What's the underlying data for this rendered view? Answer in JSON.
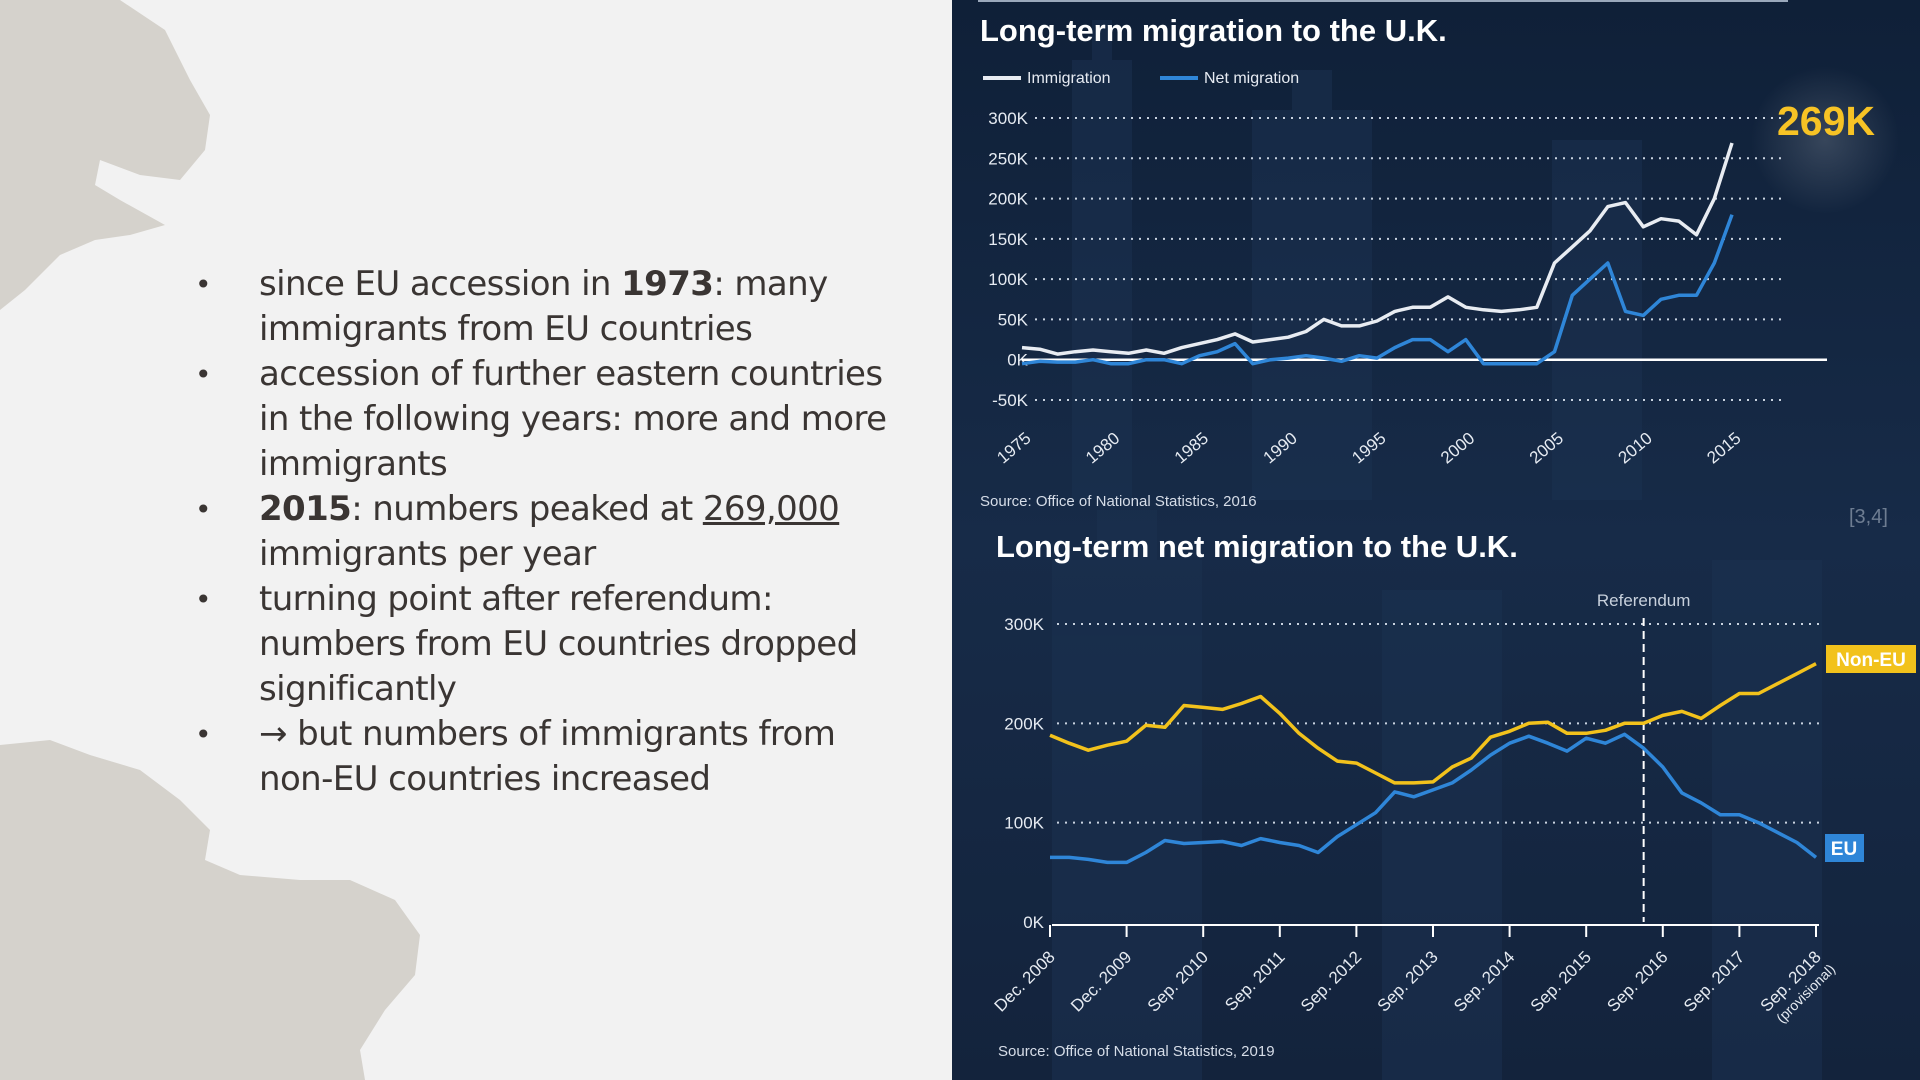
{
  "slide": {
    "bullets": [
      {
        "pre": "since EU accession in ",
        "bold": "1973",
        "post": ": many immigrants from EU countries"
      },
      {
        "pre": "accession of further eastern countries in the following years: more and more immigrants"
      },
      {
        "bold": "2015",
        "mid": ": numbers peaked at ",
        "underline": "269,000",
        "post": " immigrants per year"
      },
      {
        "pre": "turning point after referendum: numbers from EU countries dropped significantly"
      },
      {
        "pre": "→ but numbers of immigrants from non-EU countries increased"
      }
    ],
    "citation": "[3,4]"
  },
  "colors": {
    "panel_bg": "#13243e",
    "immigration": "#e8ecf2",
    "net_migration": "#2f86d8",
    "non_eu": "#f2c21c",
    "eu": "#2f86d8",
    "highlight": "#f7c325"
  },
  "chart_data": [
    {
      "type": "line",
      "title": "Long-term migration to the U.K.",
      "legend": [
        "Immigration",
        "Net migration"
      ],
      "legend_position": "top-left",
      "ylim": [
        -50,
        300
      ],
      "yticks": [
        -50,
        0,
        50,
        100,
        150,
        200,
        250,
        300
      ],
      "ytick_labels": [
        "-50K",
        "0K",
        "50K",
        "100K",
        "150K",
        "200K",
        "250K",
        "300K"
      ],
      "xlim": [
        1975,
        2015
      ],
      "xticks": [
        "1975",
        "1980",
        "1985",
        "1990",
        "1995",
        "2000",
        "2005",
        "2010",
        "2015"
      ],
      "grid": true,
      "annotation": "269K",
      "source": "Source: Office of National Statistics, 2016",
      "x": [
        1975,
        1976,
        1977,
        1978,
        1979,
        1980,
        1981,
        1982,
        1983,
        1984,
        1985,
        1986,
        1987,
        1988,
        1989,
        1990,
        1991,
        1992,
        1993,
        1994,
        1995,
        1996,
        1997,
        1998,
        1999,
        2000,
        2001,
        2002,
        2003,
        2004,
        2005,
        2006,
        2007,
        2008,
        2009,
        2010,
        2011,
        2012,
        2013,
        2014,
        2015
      ],
      "series": [
        {
          "name": "Immigration",
          "values": [
            15,
            13,
            7,
            10,
            12,
            10,
            8,
            12,
            8,
            15,
            20,
            25,
            32,
            22,
            25,
            28,
            35,
            50,
            42,
            42,
            48,
            60,
            65,
            65,
            78,
            65,
            62,
            60,
            62,
            65,
            120,
            140,
            160,
            190,
            195,
            165,
            175,
            172,
            155,
            200,
            269
          ]
        },
        {
          "name": "Net migration",
          "values": [
            -5,
            -2,
            -3,
            -3,
            0,
            -5,
            -5,
            0,
            0,
            -5,
            5,
            10,
            20,
            -5,
            0,
            2,
            5,
            2,
            -2,
            5,
            2,
            15,
            25,
            25,
            10,
            25,
            -5,
            -5,
            -5,
            -5,
            10,
            80,
            100,
            120,
            60,
            55,
            75,
            80,
            80,
            120,
            180
          ]
        }
      ]
    },
    {
      "type": "line",
      "title": "Long-term net migration to the U.K.",
      "ylim": [
        0,
        300
      ],
      "yticks": [
        0,
        100,
        200,
        300
      ],
      "ytick_labels": [
        "0K",
        "100K",
        "200K",
        "300K"
      ],
      "xticks": [
        "Dec. 2008",
        "Dec. 2009",
        "Sep. 2010",
        "Sep. 2011",
        "Sep. 2012",
        "Sep. 2013",
        "Sep. 2014",
        "Sep. 2015",
        "Sep. 2016",
        "Sep. 2017",
        "Sep. 2018"
      ],
      "xtick_note": "(provisional)",
      "grid": true,
      "reference_line": {
        "label": "Referendum",
        "x_index": 7.75
      },
      "source": "Source: Office of National Statistics, 2019",
      "x_index": [
        0,
        0.25,
        0.5,
        0.75,
        1,
        1.25,
        1.5,
        1.75,
        2,
        2.25,
        2.5,
        2.75,
        3,
        3.25,
        3.5,
        3.75,
        4,
        4.25,
        4.5,
        4.75,
        5,
        5.25,
        5.5,
        5.75,
        6,
        6.25,
        6.5,
        6.75,
        7,
        7.25,
        7.5,
        7.75,
        8,
        8.25,
        8.5,
        8.75,
        9,
        9.25,
        9.5,
        9.75,
        10
      ],
      "series": [
        {
          "name": "Non-EU",
          "values": [
            188,
            180,
            173,
            178,
            182,
            198,
            196,
            218,
            216,
            214,
            220,
            227,
            210,
            190,
            175,
            162,
            160,
            150,
            140,
            140,
            141,
            156,
            165,
            186,
            192,
            200,
            201,
            190,
            190,
            193,
            200,
            200,
            208,
            212,
            205,
            218,
            230,
            230,
            240,
            250,
            260
          ]
        },
        {
          "name": "EU",
          "values": [
            65,
            65,
            63,
            60,
            60,
            70,
            82,
            79,
            80,
            81,
            77,
            84,
            80,
            77,
            70,
            86,
            98,
            110,
            131,
            126,
            133,
            140,
            153,
            168,
            180,
            187,
            180,
            172,
            185,
            180,
            189,
            175,
            156,
            130,
            120,
            108,
            108,
            100,
            90,
            80,
            65
          ]
        }
      ]
    }
  ]
}
